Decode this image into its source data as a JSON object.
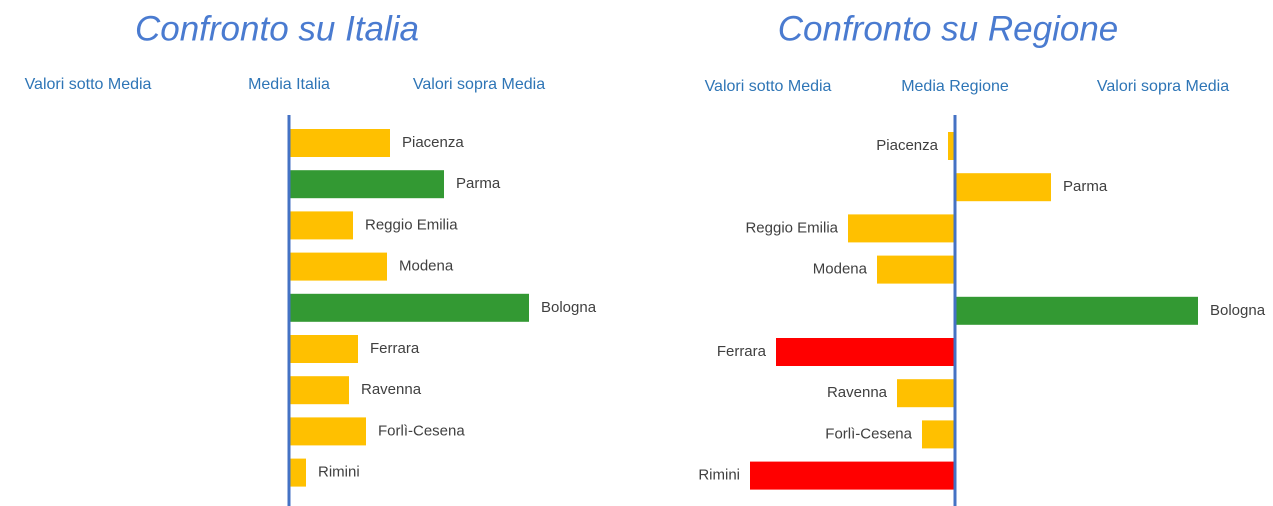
{
  "chart_data": [
    {
      "type": "bar",
      "title": "Confronto su Italia",
      "below_label": "Valori sotto Media",
      "center_label": "Media Italia",
      "above_label": "Valori sopra Media",
      "categories": [
        "Piacenza",
        "Parma",
        "Reggio Emilia",
        "Modena",
        "Bologna",
        "Ferrara",
        "Ravenna",
        "Forlì-Cesena",
        "Rimini"
      ],
      "values": [
        101,
        155,
        64,
        98,
        240,
        69,
        60,
        77,
        17
      ],
      "colors": [
        "#ffc000",
        "#339933",
        "#ffc000",
        "#ffc000",
        "#339933",
        "#ffc000",
        "#ffc000",
        "#ffc000",
        "#ffc000"
      ]
    },
    {
      "type": "bar",
      "title": "Confronto su Regione",
      "below_label": "Valori sotto Media",
      "center_label": "Media Regione",
      "above_label": "Valori sopra Media",
      "categories": [
        "Piacenza",
        "Parma",
        "Reggio Emilia",
        "Modena",
        "Bologna",
        "Ferrara",
        "Ravenna",
        "Forlì-Cesena",
        "Rimini"
      ],
      "values": [
        -7,
        96,
        -107,
        -78,
        243,
        -179,
        -58,
        -33,
        -205
      ],
      "colors": [
        "#ffc000",
        "#ffc000",
        "#ffc000",
        "#ffc000",
        "#339933",
        "#ff0000",
        "#ffc000",
        "#ffc000",
        "#ff0000"
      ]
    }
  ]
}
